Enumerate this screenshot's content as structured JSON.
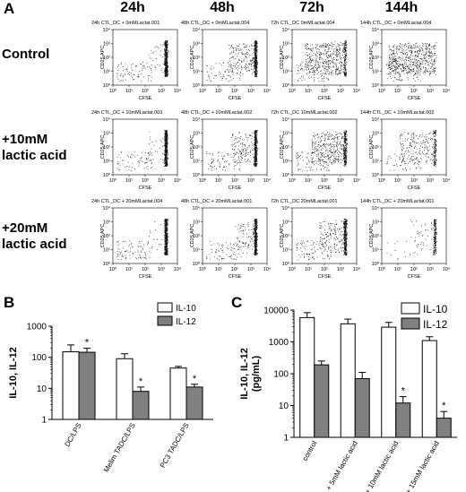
{
  "panels": {
    "A": "A",
    "B": "B",
    "C": "C"
  },
  "flow": {
    "columns": [
      "24h",
      "48h",
      "72h",
      "144h"
    ],
    "rows": [
      {
        "title": "Control",
        "labels": [
          "24h CTL_DC + 0mMLactat.001",
          "48h CTL_DC + 0mMLactat.004",
          "72h CTL_DC 0mMLactat.004",
          "144h CTL_DC + 0mMLactat.004"
        ]
      },
      {
        "title": "+10mM\nlactic acid",
        "labels": [
          "24h CTL_DC + 10mMLactat.003",
          "48h CTL_DC + 10mMLactat.002",
          "72h CTL_DC 10mMLactat.002",
          "144h CTL_DC + 10mMLactat.002"
        ]
      },
      {
        "title": "+20mM\nlactic acid",
        "labels": [
          "24h CTL_DC + 20mMLactat.004",
          "48h CTL_DC + 20mMLactat.001",
          "72h CTL_DC 20mMLactat.001",
          "144h CTL_DC + 20mMLactat.001"
        ]
      }
    ],
    "xaxis": "CFSE",
    "yaxis": "CD25 APC",
    "ticks": [
      "10⁰",
      "10¹",
      "10²",
      "10³",
      "10⁴"
    ]
  },
  "chart_data": [
    {
      "type": "bar",
      "panel": "B",
      "categories": [
        "DC/LPS",
        "Melim TADC/LPS",
        "PC3 TADC/LPS"
      ],
      "series": [
        {
          "name": "IL-10",
          "values": [
            150,
            90,
            45
          ],
          "errors": [
            100,
            40,
            6
          ],
          "color": "#ffffff"
        },
        {
          "name": "IL-12",
          "values": [
            145,
            8,
            11
          ],
          "errors": [
            50,
            3,
            2.5
          ],
          "color": "#808080"
        }
      ],
      "significance": [
        [
          false,
          true
        ],
        [
          false,
          true
        ],
        [
          false,
          true
        ]
      ],
      "star": "*",
      "ylabel": "IL-10, IL-12",
      "yscale": "log",
      "ylim": [
        1,
        1000
      ],
      "yticks": [
        "1",
        "10",
        "100",
        "1000"
      ],
      "legend": "top-right"
    },
    {
      "type": "bar",
      "panel": "C",
      "categories": [
        "control",
        "+ 5mM lactic acid",
        "+ 10mM lactic acid",
        "+ 15mM lactic acid"
      ],
      "series": [
        {
          "name": "IL-10",
          "values": [
            5800,
            3700,
            2900,
            1100
          ],
          "errors": [
            2500,
            1500,
            1200,
            350
          ],
          "color": "#ffffff"
        },
        {
          "name": "IL-12",
          "values": [
            190,
            70,
            12,
            4
          ],
          "errors": [
            60,
            40,
            7,
            2.5
          ],
          "color": "#808080"
        }
      ],
      "significance": [
        [
          false,
          false
        ],
        [
          false,
          false
        ],
        [
          false,
          true
        ],
        [
          false,
          true
        ]
      ],
      "star": "*",
      "ylabel": "IL-10, IL-12\n(pg/mL)",
      "yscale": "log",
      "ylim": [
        1,
        10000
      ],
      "yticks": [
        "1",
        "10",
        "100",
        "1000",
        "10000"
      ],
      "legend": "top-right"
    }
  ]
}
